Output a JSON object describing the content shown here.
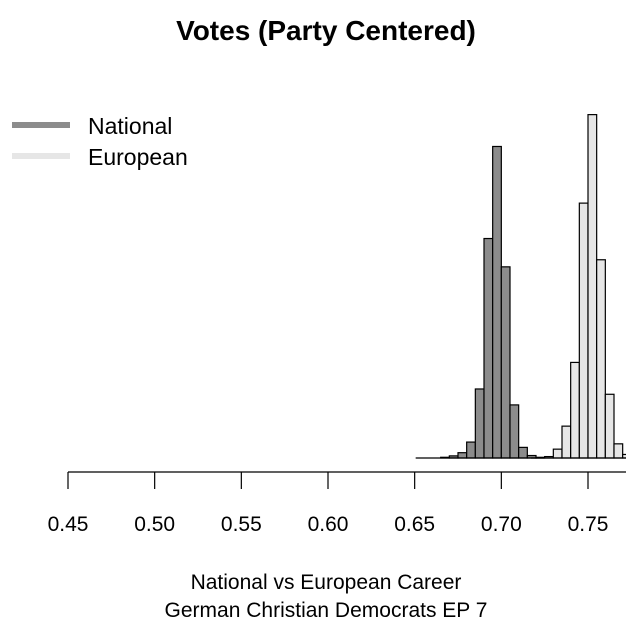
{
  "chart_data": {
    "type": "bar",
    "title": "Votes (Party Centered)",
    "xlabel": [
      "National vs European Career",
      "German Christian Democrats EP 7"
    ],
    "ylabel": "",
    "xlim": [
      0.45,
      0.775
    ],
    "ylim": [
      0,
      100
    ],
    "x_ticks": [
      "0.45",
      "0.50",
      "0.55",
      "0.60",
      "0.65",
      "0.70",
      "0.75"
    ],
    "y_axis_shown": false,
    "grid": false,
    "bin_width": 0.005,
    "legend": {
      "position": "top-left",
      "entries": [
        "National",
        "European"
      ]
    },
    "series": [
      {
        "name": "National",
        "color": "#8c8c8c",
        "bins": [
          0.665,
          0.67,
          0.675,
          0.68,
          0.685,
          0.69,
          0.695,
          0.7,
          0.705,
          0.71,
          0.715
        ],
        "values": [
          0.2,
          0.6,
          1.5,
          4.5,
          19.5,
          62.0,
          88.0,
          54.0,
          15.0,
          3.0,
          0.7
        ]
      },
      {
        "name": "European",
        "color": "#e6e6e6",
        "bins": [
          0.72,
          0.725,
          0.73,
          0.735,
          0.74,
          0.745,
          0.75,
          0.755,
          0.76,
          0.765,
          0.77
        ],
        "values": [
          0.2,
          0.4,
          2.5,
          9.0,
          27.0,
          72.0,
          97.0,
          56.0,
          18.0,
          4.0,
          1.0
        ]
      }
    ]
  }
}
